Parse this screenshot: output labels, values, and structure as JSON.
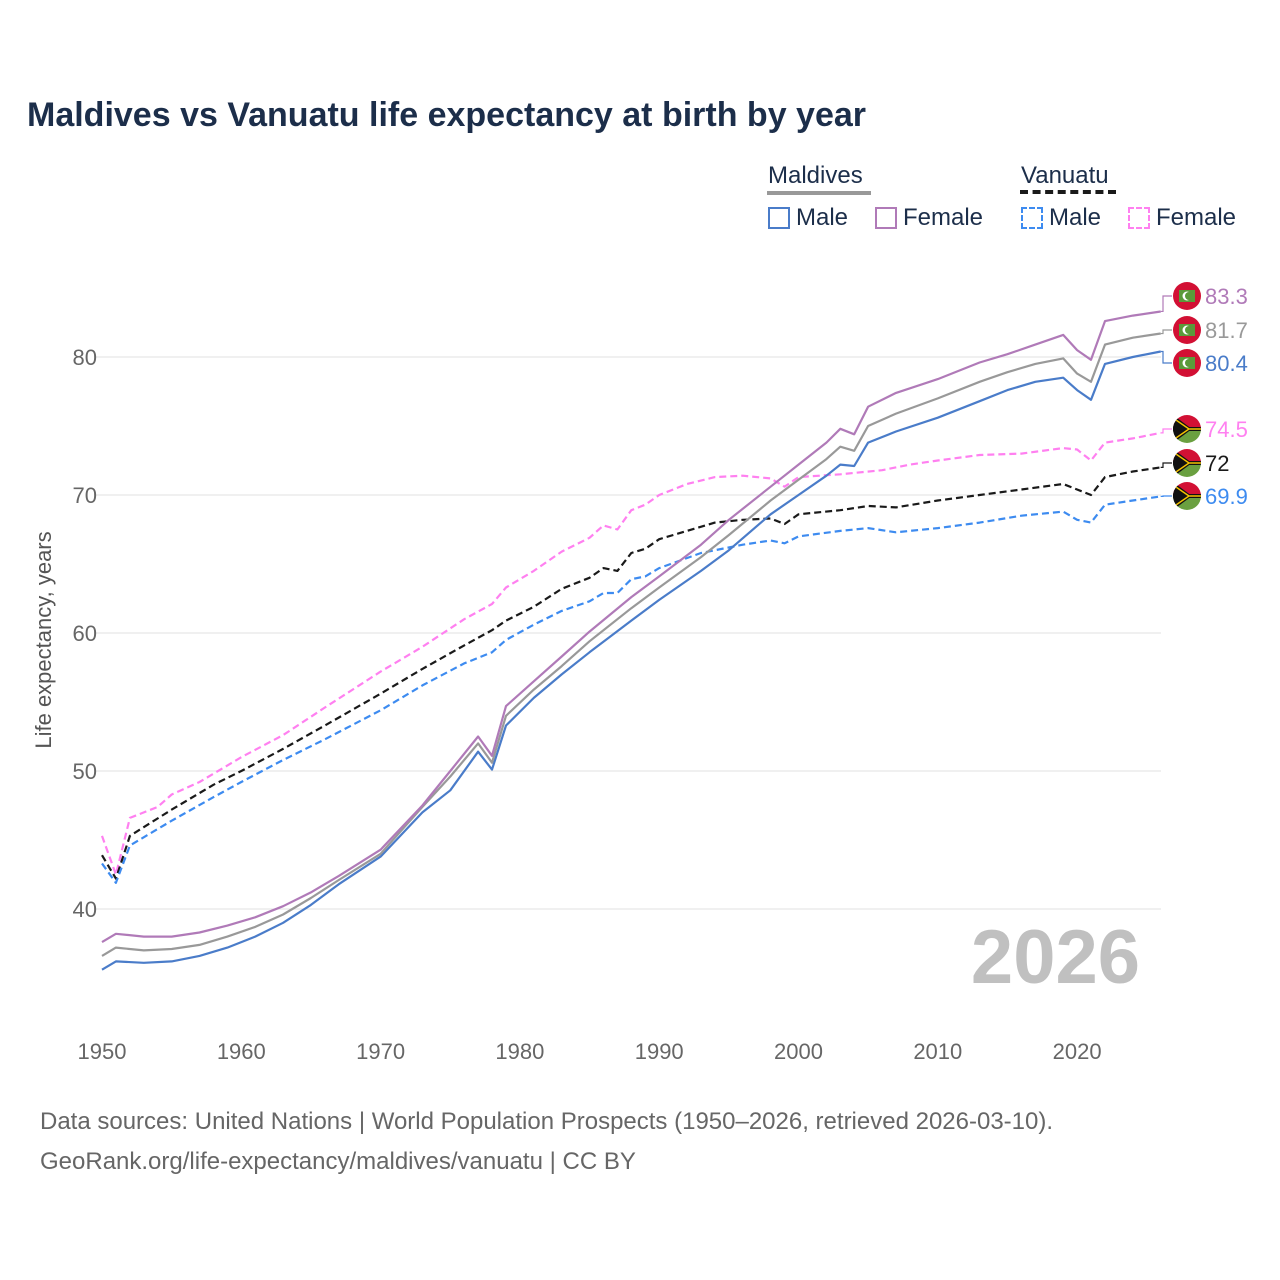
{
  "title": "Maldives vs Vanuatu life expectancy at birth by year",
  "legend": {
    "groups": [
      {
        "name": "Maldives",
        "items": [
          "Male",
          "Female"
        ]
      },
      {
        "name": "Vanuatu",
        "items": [
          "Male",
          "Female"
        ]
      }
    ]
  },
  "watermark_year": "2026",
  "footer": {
    "line1": "Data sources: United Nations | World Population Prospects (1950–2026, retrieved 2026-03-10).",
    "line2": "GeoRank.org/life-expectancy/maldives/vanuatu | CC BY"
  },
  "colors": {
    "maldives_male": "#4a7cc9",
    "maldives_female": "#b07ab8",
    "maldives_total": "#999999",
    "vanuatu_male": "#3d8bf0",
    "vanuatu_female": "#ff80f0",
    "vanuatu_total": "#1a1a1a",
    "title": "#1c2e4a",
    "watermark": "#c0c0c0"
  },
  "chart_data": {
    "type": "line",
    "title": "Maldives vs Vanuatu life expectancy at birth by year",
    "xlabel": "",
    "ylabel": "Life expectancy, years",
    "xlim": [
      1950,
      2026
    ],
    "ylim": [
      33.4,
      85.6
    ],
    "x_ticks": [
      1950,
      1960,
      1970,
      1980,
      1990,
      2000,
      2010,
      2020
    ],
    "y_ticks": [
      40,
      50,
      60,
      70,
      80
    ],
    "grid": "horizontal",
    "legend_position": "top-right",
    "series": [
      {
        "id": "mf",
        "name": "Maldives Female",
        "country": "maldives",
        "style": "solid",
        "end_label": "83.3",
        "points": [
          [
            1950,
            37.6
          ],
          [
            1951,
            38.2
          ],
          [
            1953,
            38.0
          ],
          [
            1955,
            38.0
          ],
          [
            1957,
            38.3
          ],
          [
            1959,
            38.8
          ],
          [
            1961,
            39.4
          ],
          [
            1963,
            40.2
          ],
          [
            1965,
            41.2
          ],
          [
            1967,
            42.4
          ],
          [
            1970,
            44.3
          ],
          [
            1973,
            47.5
          ],
          [
            1975,
            50.0
          ],
          [
            1977,
            52.5
          ],
          [
            1978,
            51.1
          ],
          [
            1979,
            54.7
          ],
          [
            1981,
            56.5
          ],
          [
            1983,
            58.3
          ],
          [
            1985,
            60.1
          ],
          [
            1988,
            62.6
          ],
          [
            1990,
            64.1
          ],
          [
            1993,
            66.4
          ],
          [
            1995,
            68.2
          ],
          [
            1998,
            70.6
          ],
          [
            2000,
            72.2
          ],
          [
            2002,
            73.8
          ],
          [
            2003,
            74.8
          ],
          [
            2004,
            74.4
          ],
          [
            2005,
            76.4
          ],
          [
            2007,
            77.4
          ],
          [
            2010,
            78.4
          ],
          [
            2013,
            79.6
          ],
          [
            2015,
            80.2
          ],
          [
            2017,
            80.9
          ],
          [
            2019,
            81.6
          ],
          [
            2020,
            80.5
          ],
          [
            2021,
            79.8
          ],
          [
            2022,
            82.6
          ],
          [
            2024,
            83.0
          ],
          [
            2026,
            83.3
          ]
        ]
      },
      {
        "id": "mt",
        "name": "Maldives",
        "country": "maldives",
        "style": "solid",
        "end_label": "81.7",
        "points": [
          [
            1950,
            36.6
          ],
          [
            1951,
            37.2
          ],
          [
            1953,
            37.0
          ],
          [
            1955,
            37.1
          ],
          [
            1957,
            37.4
          ],
          [
            1959,
            38.0
          ],
          [
            1961,
            38.7
          ],
          [
            1963,
            39.6
          ],
          [
            1965,
            40.8
          ],
          [
            1967,
            42.1
          ],
          [
            1970,
            44.0
          ],
          [
            1973,
            47.4
          ],
          [
            1975,
            49.6
          ],
          [
            1977,
            52.0
          ],
          [
            1978,
            50.6
          ],
          [
            1979,
            54.0
          ],
          [
            1981,
            55.9
          ],
          [
            1983,
            57.6
          ],
          [
            1985,
            59.4
          ],
          [
            1988,
            61.8
          ],
          [
            1990,
            63.3
          ],
          [
            1993,
            65.5
          ],
          [
            1995,
            67.1
          ],
          [
            1998,
            69.6
          ],
          [
            2000,
            71.1
          ],
          [
            2002,
            72.6
          ],
          [
            2003,
            73.5
          ],
          [
            2004,
            73.2
          ],
          [
            2005,
            75.0
          ],
          [
            2007,
            75.9
          ],
          [
            2010,
            77.0
          ],
          [
            2013,
            78.2
          ],
          [
            2015,
            78.9
          ],
          [
            2017,
            79.5
          ],
          [
            2019,
            79.9
          ],
          [
            2020,
            78.8
          ],
          [
            2021,
            78.2
          ],
          [
            2022,
            80.9
          ],
          [
            2024,
            81.4
          ],
          [
            2026,
            81.7
          ]
        ]
      },
      {
        "id": "mm",
        "name": "Maldives Male",
        "country": "maldives",
        "style": "solid",
        "end_label": "80.4",
        "points": [
          [
            1950,
            35.6
          ],
          [
            1951,
            36.2
          ],
          [
            1953,
            36.1
          ],
          [
            1955,
            36.2
          ],
          [
            1957,
            36.6
          ],
          [
            1959,
            37.2
          ],
          [
            1961,
            38.0
          ],
          [
            1963,
            39.0
          ],
          [
            1965,
            40.3
          ],
          [
            1967,
            41.8
          ],
          [
            1970,
            43.8
          ],
          [
            1973,
            47.0
          ],
          [
            1975,
            48.6
          ],
          [
            1977,
            51.4
          ],
          [
            1978,
            50.1
          ],
          [
            1979,
            53.3
          ],
          [
            1981,
            55.3
          ],
          [
            1983,
            57.0
          ],
          [
            1985,
            58.6
          ],
          [
            1988,
            60.9
          ],
          [
            1990,
            62.4
          ],
          [
            1993,
            64.5
          ],
          [
            1995,
            66.0
          ],
          [
            1998,
            68.6
          ],
          [
            2000,
            70.0
          ],
          [
            2002,
            71.4
          ],
          [
            2003,
            72.2
          ],
          [
            2004,
            72.1
          ],
          [
            2005,
            73.8
          ],
          [
            2007,
            74.6
          ],
          [
            2010,
            75.6
          ],
          [
            2013,
            76.8
          ],
          [
            2015,
            77.6
          ],
          [
            2017,
            78.2
          ],
          [
            2019,
            78.5
          ],
          [
            2020,
            77.6
          ],
          [
            2021,
            76.9
          ],
          [
            2022,
            79.5
          ],
          [
            2024,
            80.0
          ],
          [
            2026,
            80.4
          ]
        ]
      },
      {
        "id": "vf",
        "name": "Vanuatu Female",
        "country": "vanuatu",
        "style": "dashed",
        "end_label": "74.5",
        "points": [
          [
            1950,
            45.3
          ],
          [
            1951,
            42.5
          ],
          [
            1952,
            46.6
          ],
          [
            1954,
            47.4
          ],
          [
            1955,
            48.3
          ],
          [
            1957,
            49.2
          ],
          [
            1960,
            51.0
          ],
          [
            1963,
            52.6
          ],
          [
            1966,
            54.6
          ],
          [
            1970,
            57.2
          ],
          [
            1973,
            59.0
          ],
          [
            1976,
            61.0
          ],
          [
            1978,
            62.1
          ],
          [
            1979,
            63.3
          ],
          [
            1981,
            64.5
          ],
          [
            1983,
            65.9
          ],
          [
            1985,
            66.9
          ],
          [
            1986,
            67.8
          ],
          [
            1987,
            67.5
          ],
          [
            1988,
            68.9
          ],
          [
            1989,
            69.3
          ],
          [
            1990,
            70.0
          ],
          [
            1992,
            70.8
          ],
          [
            1994,
            71.3
          ],
          [
            1996,
            71.4
          ],
          [
            1998,
            71.2
          ],
          [
            1999,
            70.6
          ],
          [
            2000,
            71.3
          ],
          [
            2003,
            71.5
          ],
          [
            2006,
            71.8
          ],
          [
            2008,
            72.2
          ],
          [
            2010,
            72.5
          ],
          [
            2013,
            72.9
          ],
          [
            2016,
            73.0
          ],
          [
            2019,
            73.4
          ],
          [
            2020,
            73.3
          ],
          [
            2021,
            72.5
          ],
          [
            2022,
            73.8
          ],
          [
            2024,
            74.1
          ],
          [
            2026,
            74.5
          ]
        ]
      },
      {
        "id": "vt",
        "name": "Vanuatu",
        "country": "vanuatu",
        "style": "dashed",
        "end_label": "72",
        "points": [
          [
            1950,
            43.9
          ],
          [
            1951,
            42.2
          ],
          [
            1952,
            45.3
          ],
          [
            1955,
            47.2
          ],
          [
            1958,
            49.0
          ],
          [
            1960,
            50.0
          ],
          [
            1963,
            51.6
          ],
          [
            1966,
            53.3
          ],
          [
            1970,
            55.6
          ],
          [
            1973,
            57.4
          ],
          [
            1976,
            59.1
          ],
          [
            1978,
            60.2
          ],
          [
            1979,
            60.9
          ],
          [
            1981,
            61.9
          ],
          [
            1983,
            63.2
          ],
          [
            1985,
            64.0
          ],
          [
            1986,
            64.7
          ],
          [
            1987,
            64.5
          ],
          [
            1988,
            65.8
          ],
          [
            1989,
            66.1
          ],
          [
            1990,
            66.8
          ],
          [
            1992,
            67.4
          ],
          [
            1994,
            68.0
          ],
          [
            1996,
            68.2
          ],
          [
            1998,
            68.3
          ],
          [
            1999,
            67.9
          ],
          [
            2000,
            68.6
          ],
          [
            2003,
            68.9
          ],
          [
            2005,
            69.2
          ],
          [
            2007,
            69.1
          ],
          [
            2010,
            69.6
          ],
          [
            2013,
            70.0
          ],
          [
            2016,
            70.4
          ],
          [
            2019,
            70.8
          ],
          [
            2020,
            70.4
          ],
          [
            2021,
            70.0
          ],
          [
            2022,
            71.3
          ],
          [
            2024,
            71.7
          ],
          [
            2026,
            72.0
          ]
        ]
      },
      {
        "id": "vm",
        "name": "Vanuatu Male",
        "country": "vanuatu",
        "style": "dashed",
        "end_label": "69.9",
        "points": [
          [
            1950,
            43.3
          ],
          [
            1951,
            41.9
          ],
          [
            1952,
            44.6
          ],
          [
            1955,
            46.4
          ],
          [
            1958,
            48.1
          ],
          [
            1960,
            49.2
          ],
          [
            1963,
            50.8
          ],
          [
            1966,
            52.3
          ],
          [
            1970,
            54.4
          ],
          [
            1973,
            56.2
          ],
          [
            1976,
            57.8
          ],
          [
            1978,
            58.6
          ],
          [
            1979,
            59.5
          ],
          [
            1981,
            60.6
          ],
          [
            1983,
            61.6
          ],
          [
            1985,
            62.3
          ],
          [
            1986,
            62.9
          ],
          [
            1987,
            62.9
          ],
          [
            1988,
            63.9
          ],
          [
            1989,
            64.1
          ],
          [
            1990,
            64.7
          ],
          [
            1993,
            65.8
          ],
          [
            1996,
            66.4
          ],
          [
            1998,
            66.7
          ],
          [
            1999,
            66.5
          ],
          [
            2000,
            67.0
          ],
          [
            2003,
            67.4
          ],
          [
            2005,
            67.6
          ],
          [
            2007,
            67.3
          ],
          [
            2010,
            67.6
          ],
          [
            2013,
            68.0
          ],
          [
            2016,
            68.5
          ],
          [
            2019,
            68.8
          ],
          [
            2020,
            68.2
          ],
          [
            2021,
            68.0
          ],
          [
            2022,
            69.3
          ],
          [
            2024,
            69.6
          ],
          [
            2026,
            69.9
          ]
        ]
      }
    ]
  }
}
